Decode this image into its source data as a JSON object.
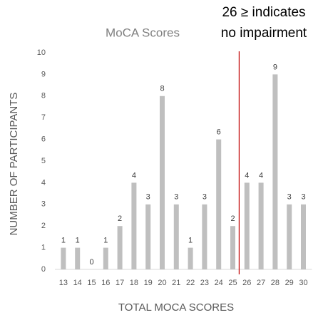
{
  "chart_data": {
    "type": "bar",
    "title": "MoCA Scores",
    "annotation": [
      "26 ≥  indicates",
      "no impairment"
    ],
    "x_label": "TOTAL MOCA SCORES",
    "y_label": "NUMBER OF PARTICIPANTS",
    "categories": [
      "13",
      "14",
      "15",
      "16",
      "17",
      "18",
      "19",
      "20",
      "21",
      "22",
      "23",
      "24",
      "25",
      "26",
      "27",
      "28",
      "29",
      "30"
    ],
    "values": [
      1,
      1,
      0,
      1,
      2,
      4,
      3,
      8,
      3,
      1,
      3,
      6,
      2,
      4,
      4,
      9,
      3,
      3
    ],
    "color": "#bfbfbf",
    "reference_color": "#c00000",
    "ylim": [
      0,
      10
    ],
    "yticks": [
      0,
      1,
      2,
      3,
      4,
      5,
      6,
      7,
      8,
      9,
      10
    ],
    "grid": false
  }
}
